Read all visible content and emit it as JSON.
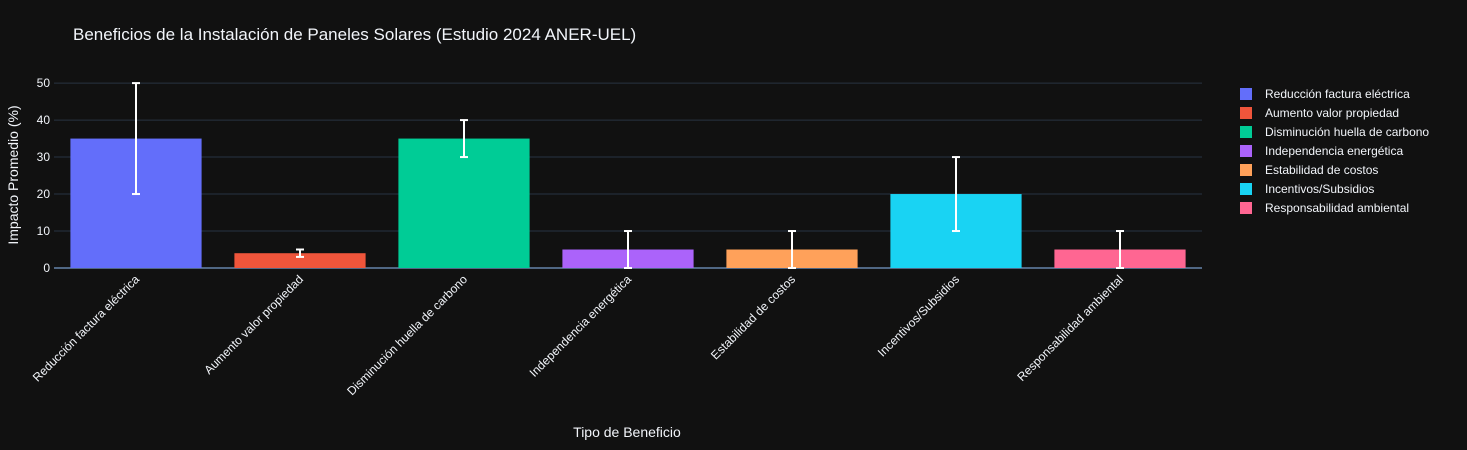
{
  "chart_data": {
    "type": "bar",
    "title": "Beneficios de la Instalación de Paneles Solares (Estudio 2024 ANER-UEL)",
    "xlabel": "Tipo de Beneficio",
    "ylabel": "Impacto Promedio (%)",
    "ylim": [
      0,
      53
    ],
    "yticks": [
      0,
      10,
      20,
      30,
      40,
      50
    ],
    "grid": true,
    "legend_position": "right",
    "categories": [
      "Reducción factura eléctrica",
      "Aumento valor propiedad",
      "Disminución huella de carbono",
      "Independencia energética",
      "Estabilidad de costos",
      "Incentivos/Subsidios",
      "Responsabilidad ambiental"
    ],
    "values": [
      35,
      4,
      35,
      5,
      5,
      20,
      5
    ],
    "error_low": [
      20,
      3,
      30,
      0,
      0,
      10,
      0
    ],
    "error_high": [
      50,
      5,
      40,
      10,
      10,
      30,
      10
    ],
    "series": [
      {
        "name": "Reducción factura eléctrica",
        "color": "#636efa"
      },
      {
        "name": "Aumento valor propiedad",
        "color": "#ef553b"
      },
      {
        "name": "Disminución huella de carbono",
        "color": "#00cc96"
      },
      {
        "name": "Independencia energética",
        "color": "#ab63fa"
      },
      {
        "name": "Estabilidad de costos",
        "color": "#ffa15a"
      },
      {
        "name": "Incentivos/Subsidios",
        "color": "#19d3f3"
      },
      {
        "name": "Responsabilidad ambiental",
        "color": "#ff6692"
      }
    ]
  },
  "colors": {
    "background": "#111111",
    "grid": "#283442",
    "error_bar": "#ffffff"
  }
}
